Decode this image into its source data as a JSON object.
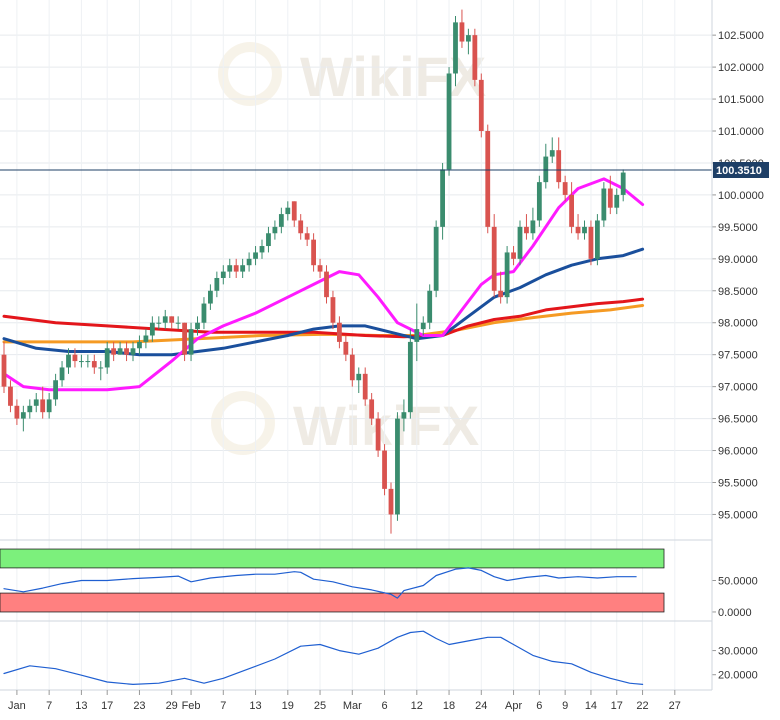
{
  "chart_data": [
    {
      "type": "candlestick",
      "title": "",
      "current_price_label": "100.3510",
      "current_price": 100.351,
      "y_ticks": [
        "102.5000",
        "102.0000",
        "101.5000",
        "101.0000",
        "100.5000",
        "100.0000",
        "99.5000",
        "99.0000",
        "98.5000",
        "98.0000",
        "97.5000",
        "97.0000",
        "96.5000",
        "96.0000",
        "95.5000",
        "95.0000"
      ],
      "y_tick_values": [
        102.5,
        102.0,
        101.5,
        101.0,
        100.5,
        100.0,
        99.5,
        99.0,
        98.5,
        98.0,
        97.5,
        97.0,
        96.5,
        96.0,
        95.5,
        95.0
      ],
      "ylim": [
        94.6,
        103.05
      ],
      "x_ticks": [
        "Jan",
        "7",
        "13",
        "17",
        "23",
        "29",
        "Feb",
        "7",
        "13",
        "19",
        "25",
        "Mar",
        "6",
        "12",
        "18",
        "24",
        "Apr",
        "6",
        "9",
        "14",
        "17",
        "22",
        "27"
      ],
      "x_tick_index": [
        2,
        7,
        12,
        16,
        21,
        26,
        29,
        34,
        39,
        44,
        49,
        54,
        59,
        64,
        69,
        74,
        79,
        83,
        87,
        91,
        95,
        99,
        104
      ],
      "colors": {
        "up": "#3a8c6e",
        "down": "#d9534f",
        "ma_magenta": "#ff1aff",
        "ma_blue": "#1a4f9c",
        "ma_red": "#e3161b",
        "ma_orange": "#f59a23",
        "price_line": "#1e3f66"
      },
      "candles": [
        [
          97.5,
          97.7,
          96.9,
          97.0
        ],
        [
          97.0,
          97.1,
          96.6,
          96.7
        ],
        [
          96.7,
          96.8,
          96.4,
          96.5
        ],
        [
          96.5,
          96.7,
          96.3,
          96.6
        ],
        [
          96.6,
          96.8,
          96.5,
          96.7
        ],
        [
          96.7,
          96.9,
          96.6,
          96.8
        ],
        [
          96.8,
          97.0,
          96.5,
          96.6
        ],
        [
          96.6,
          96.9,
          96.5,
          96.8
        ],
        [
          96.8,
          97.2,
          96.7,
          97.1
        ],
        [
          97.1,
          97.4,
          97.0,
          97.3
        ],
        [
          97.3,
          97.6,
          97.2,
          97.5
        ],
        [
          97.5,
          97.6,
          97.3,
          97.4
        ],
        [
          97.4,
          97.5,
          97.3,
          97.4
        ],
        [
          97.4,
          97.5,
          97.3,
          97.4
        ],
        [
          97.4,
          97.5,
          97.2,
          97.3
        ],
        [
          97.3,
          97.4,
          97.1,
          97.3
        ],
        [
          97.3,
          97.7,
          97.2,
          97.6
        ],
        [
          97.6,
          97.7,
          97.4,
          97.5
        ],
        [
          97.5,
          97.7,
          97.5,
          97.6
        ],
        [
          97.6,
          97.7,
          97.4,
          97.5
        ],
        [
          97.5,
          97.7,
          97.4,
          97.6
        ],
        [
          97.6,
          97.8,
          97.5,
          97.7
        ],
        [
          97.7,
          97.9,
          97.6,
          97.8
        ],
        [
          97.8,
          98.1,
          97.7,
          98.0
        ],
        [
          98.0,
          98.1,
          97.9,
          98.0
        ],
        [
          98.0,
          98.2,
          97.9,
          98.1
        ],
        [
          98.1,
          98.1,
          97.9,
          98.0
        ],
        [
          98.0,
          98.1,
          97.9,
          98.0
        ],
        [
          98.0,
          98.0,
          97.4,
          97.5
        ],
        [
          97.5,
          98.0,
          97.4,
          97.9
        ],
        [
          97.9,
          98.1,
          97.8,
          98.0
        ],
        [
          98.0,
          98.4,
          97.9,
          98.3
        ],
        [
          98.3,
          98.6,
          98.2,
          98.5
        ],
        [
          98.5,
          98.8,
          98.4,
          98.7
        ],
        [
          98.7,
          98.9,
          98.6,
          98.8
        ],
        [
          98.8,
          99.0,
          98.7,
          98.9
        ],
        [
          98.9,
          99.0,
          98.7,
          98.8
        ],
        [
          98.8,
          99.0,
          98.7,
          98.9
        ],
        [
          98.9,
          99.1,
          98.8,
          99.0
        ],
        [
          99.0,
          99.2,
          98.9,
          99.1
        ],
        [
          99.1,
          99.3,
          99.0,
          99.2
        ],
        [
          99.2,
          99.5,
          99.1,
          99.4
        ],
        [
          99.4,
          99.6,
          99.3,
          99.5
        ],
        [
          99.5,
          99.8,
          99.4,
          99.7
        ],
        [
          99.7,
          99.9,
          99.6,
          99.8
        ],
        [
          99.9,
          99.9,
          99.5,
          99.6
        ],
        [
          99.6,
          99.7,
          99.3,
          99.4
        ],
        [
          99.4,
          99.5,
          99.2,
          99.3
        ],
        [
          99.3,
          99.4,
          98.8,
          98.9
        ],
        [
          98.9,
          99.0,
          98.7,
          98.8
        ],
        [
          98.8,
          98.9,
          98.3,
          98.4
        ],
        [
          98.4,
          98.5,
          97.9,
          98.0
        ],
        [
          98.0,
          98.1,
          97.6,
          97.7
        ],
        [
          97.7,
          97.8,
          97.4,
          97.5
        ],
        [
          97.5,
          97.6,
          97.0,
          97.1
        ],
        [
          97.1,
          97.3,
          96.9,
          97.2
        ],
        [
          97.2,
          97.3,
          96.7,
          96.8
        ],
        [
          96.8,
          96.9,
          96.4,
          96.5
        ],
        [
          96.5,
          96.6,
          95.9,
          96.0
        ],
        [
          96.0,
          96.1,
          95.3,
          95.4
        ],
        [
          95.4,
          95.5,
          94.7,
          95.0
        ],
        [
          95.0,
          96.6,
          94.9,
          96.5
        ],
        [
          96.5,
          96.8,
          96.3,
          96.6
        ],
        [
          96.6,
          97.9,
          96.5,
          97.7
        ],
        [
          97.7,
          98.3,
          97.4,
          97.9
        ],
        [
          97.9,
          98.1,
          97.8,
          98.0
        ],
        [
          98.0,
          98.6,
          97.9,
          98.5
        ],
        [
          98.5,
          99.6,
          98.4,
          99.5
        ],
        [
          99.5,
          100.5,
          99.3,
          100.4
        ],
        [
          100.4,
          102.0,
          100.3,
          101.9
        ],
        [
          101.9,
          102.8,
          101.7,
          102.7
        ],
        [
          102.7,
          102.9,
          102.3,
          102.4
        ],
        [
          102.4,
          102.6,
          102.2,
          102.5
        ],
        [
          102.5,
          102.6,
          101.7,
          101.8
        ],
        [
          101.8,
          101.9,
          100.9,
          101.0
        ],
        [
          101.0,
          101.1,
          99.4,
          99.5
        ],
        [
          99.5,
          99.7,
          98.4,
          98.5
        ],
        [
          98.5,
          98.8,
          98.3,
          98.4
        ],
        [
          98.4,
          99.2,
          98.3,
          99.1
        ],
        [
          99.1,
          99.2,
          98.9,
          99.0
        ],
        [
          99.0,
          99.6,
          98.9,
          99.5
        ],
        [
          99.5,
          99.7,
          99.3,
          99.4
        ],
        [
          99.4,
          99.8,
          99.3,
          99.6
        ],
        [
          99.6,
          100.3,
          99.5,
          100.2
        ],
        [
          100.2,
          100.8,
          100.1,
          100.6
        ],
        [
          100.6,
          100.9,
          100.5,
          100.7
        ],
        [
          100.7,
          100.9,
          100.1,
          100.2
        ],
        [
          100.2,
          100.3,
          99.9,
          100.0
        ],
        [
          100.0,
          100.2,
          99.4,
          99.5
        ],
        [
          99.5,
          99.7,
          99.3,
          99.4
        ],
        [
          99.4,
          99.6,
          99.3,
          99.5
        ],
        [
          99.5,
          99.6,
          98.9,
          99.0
        ],
        [
          99.0,
          99.7,
          98.9,
          99.6
        ],
        [
          99.6,
          100.2,
          99.5,
          100.1
        ],
        [
          100.1,
          100.3,
          99.7,
          99.8
        ],
        [
          99.8,
          100.1,
          99.7,
          100.0
        ],
        [
          100.0,
          100.4,
          99.9,
          100.35
        ]
      ],
      "ma_magenta": [
        [
          0,
          97.2
        ],
        [
          3,
          97.0
        ],
        [
          7,
          96.95
        ],
        [
          12,
          96.95
        ],
        [
          16,
          96.95
        ],
        [
          21,
          97.0
        ],
        [
          26,
          97.4
        ],
        [
          30,
          97.75
        ],
        [
          34,
          97.95
        ],
        [
          39,
          98.15
        ],
        [
          44,
          98.4
        ],
        [
          48,
          98.6
        ],
        [
          52,
          98.8
        ],
        [
          55,
          98.75
        ],
        [
          58,
          98.4
        ],
        [
          61,
          98.0
        ],
        [
          65,
          97.8
        ],
        [
          68,
          97.8
        ],
        [
          71,
          98.2
        ],
        [
          74,
          98.6
        ],
        [
          76,
          98.75
        ],
        [
          79,
          98.8
        ],
        [
          82,
          99.2
        ],
        [
          86,
          99.8
        ],
        [
          89,
          100.1
        ],
        [
          93,
          100.25
        ],
        [
          96,
          100.1
        ],
        [
          99,
          99.85
        ]
      ],
      "ma_blue": [
        [
          0,
          97.75
        ],
        [
          5,
          97.6
        ],
        [
          10,
          97.55
        ],
        [
          16,
          97.55
        ],
        [
          21,
          97.5
        ],
        [
          26,
          97.5
        ],
        [
          30,
          97.55
        ],
        [
          34,
          97.6
        ],
        [
          39,
          97.7
        ],
        [
          44,
          97.8
        ],
        [
          48,
          97.9
        ],
        [
          52,
          97.95
        ],
        [
          56,
          97.95
        ],
        [
          60,
          97.85
        ],
        [
          64,
          97.75
        ],
        [
          68,
          97.8
        ],
        [
          72,
          98.1
        ],
        [
          76,
          98.4
        ],
        [
          80,
          98.55
        ],
        [
          84,
          98.75
        ],
        [
          88,
          98.9
        ],
        [
          92,
          99.0
        ],
        [
          96,
          99.05
        ],
        [
          99,
          99.15
        ]
      ],
      "ma_red": [
        [
          0,
          98.1
        ],
        [
          8,
          98.0
        ],
        [
          16,
          97.95
        ],
        [
          24,
          97.9
        ],
        [
          32,
          97.85
        ],
        [
          40,
          97.85
        ],
        [
          48,
          97.85
        ],
        [
          56,
          97.8
        ],
        [
          62,
          97.78
        ],
        [
          68,
          97.8
        ],
        [
          72,
          97.95
        ],
        [
          76,
          98.05
        ],
        [
          80,
          98.1
        ],
        [
          84,
          98.2
        ],
        [
          88,
          98.25
        ],
        [
          92,
          98.3
        ],
        [
          96,
          98.33
        ],
        [
          99,
          98.37
        ]
      ],
      "ma_orange": [
        [
          0,
          97.7
        ],
        [
          10,
          97.7
        ],
        [
          20,
          97.7
        ],
        [
          30,
          97.75
        ],
        [
          40,
          97.8
        ],
        [
          50,
          97.82
        ],
        [
          58,
          97.8
        ],
        [
          64,
          97.8
        ],
        [
          70,
          97.88
        ],
        [
          76,
          98.0
        ],
        [
          82,
          98.08
        ],
        [
          88,
          98.15
        ],
        [
          94,
          98.2
        ],
        [
          99,
          98.27
        ]
      ]
    },
    {
      "type": "line",
      "title": "",
      "y_ticks": [
        "50.0000",
        "0.0000"
      ],
      "y_tick_values": [
        50,
        0
      ],
      "ylim": [
        -8,
        108
      ],
      "overbought_zone": [
        70,
        100
      ],
      "oversold_zone": [
        0,
        30
      ],
      "colors": {
        "line": "#1f5fd1",
        "overbought": "#7cf07c",
        "oversold": "#ff8080"
      },
      "values": [
        [
          0,
          37
        ],
        [
          3,
          32
        ],
        [
          6,
          38
        ],
        [
          9,
          45
        ],
        [
          12,
          50
        ],
        [
          16,
          50
        ],
        [
          20,
          53
        ],
        [
          24,
          55
        ],
        [
          27,
          57
        ],
        [
          29,
          48
        ],
        [
          32,
          54
        ],
        [
          36,
          58
        ],
        [
          39,
          60
        ],
        [
          42,
          60
        ],
        [
          45,
          64
        ],
        [
          46,
          63
        ],
        [
          48,
          52
        ],
        [
          51,
          48
        ],
        [
          54,
          40
        ],
        [
          57,
          35
        ],
        [
          60,
          28
        ],
        [
          61,
          22
        ],
        [
          62,
          34
        ],
        [
          65,
          42
        ],
        [
          67,
          58
        ],
        [
          70,
          68
        ],
        [
          72,
          70
        ],
        [
          74,
          66
        ],
        [
          76,
          56
        ],
        [
          78,
          50
        ],
        [
          81,
          55
        ],
        [
          84,
          58
        ],
        [
          86,
          54
        ],
        [
          89,
          56
        ],
        [
          92,
          54
        ],
        [
          95,
          56
        ],
        [
          98,
          56
        ]
      ]
    },
    {
      "type": "line",
      "title": "",
      "y_ticks": [
        "30.0000",
        "20.0000"
      ],
      "y_tick_values": [
        30,
        20
      ],
      "ylim": [
        14.5,
        41.0
      ],
      "colors": {
        "line": "#1f5fd1"
      },
      "values": [
        [
          0,
          20.5
        ],
        [
          4,
          23.7
        ],
        [
          8,
          22.5
        ],
        [
          12,
          19.8
        ],
        [
          16,
          17.0
        ],
        [
          20,
          16.0
        ],
        [
          24,
          16.5
        ],
        [
          28,
          18.5
        ],
        [
          31,
          16.5
        ],
        [
          34,
          18.5
        ],
        [
          38,
          22.5
        ],
        [
          42,
          26.5
        ],
        [
          46,
          31.8
        ],
        [
          49,
          32.5
        ],
        [
          52,
          30.0
        ],
        [
          55,
          28.5
        ],
        [
          58,
          31.0
        ],
        [
          61,
          35.5
        ],
        [
          63,
          37.5
        ],
        [
          65,
          38.0
        ],
        [
          67,
          35.0
        ],
        [
          69,
          32.5
        ],
        [
          72,
          34.0
        ],
        [
          75,
          35.5
        ],
        [
          77,
          35.5
        ],
        [
          79,
          32.5
        ],
        [
          82,
          28.0
        ],
        [
          85,
          25.5
        ],
        [
          88,
          24.5
        ],
        [
          91,
          21.0
        ],
        [
          94,
          18.5
        ],
        [
          97,
          16.5
        ],
        [
          99,
          16.0
        ]
      ]
    }
  ]
}
